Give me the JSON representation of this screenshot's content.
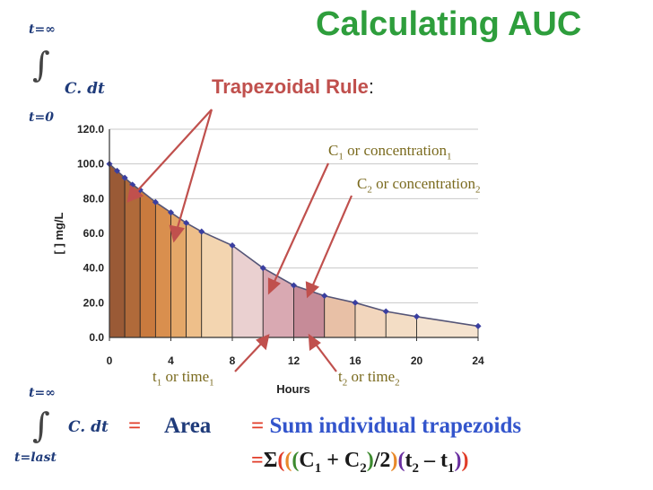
{
  "title": "Calculating AUC",
  "subtitle": "Trapezoidal Rule",
  "subtitle_colon": ":",
  "integral_top": {
    "upper": "t=∞",
    "lower": "t=0",
    "sign": "∫",
    "expression": "C. dt"
  },
  "integral_bottom": {
    "upper": "t=∞",
    "lower": "t=last",
    "sign": "∫",
    "expression": "C. dt"
  },
  "annotations": {
    "c1": {
      "main": "C",
      "sub1": "1",
      "rest": " or concentration",
      "sub2": "1"
    },
    "c2": {
      "main": "C",
      "sub1": "2",
      "rest": " or concentration",
      "sub2": "2"
    },
    "t1": {
      "main": "t",
      "sub1": "1",
      "rest": " or time",
      "sub2": "1"
    },
    "t2": {
      "main": "t",
      "sub1": "2",
      "rest": " or time",
      "sub2": "2"
    }
  },
  "equation": {
    "equals1": "=",
    "area": "Area",
    "equals2": "=",
    "sum_text": "Sum individual trapezoids"
  },
  "formula": {
    "eq": "=",
    "sigma": "Σ",
    "p1": "(",
    "p2": "(",
    "p3": "(",
    "c1": "C",
    "c1sub": "1",
    "plus": " + ",
    "c2": "C",
    "c2sub": "2",
    "close1": ")",
    "div": "/2",
    "close2": ")",
    "p4": "(",
    "t2": "t",
    "t2sub": "2",
    "minus": " – ",
    "t1": "t",
    "t1sub": "1",
    "close3": ")",
    "close4": ")"
  },
  "colors": {
    "title": "#2e9e3c",
    "subtitle": "#c0504d",
    "integral": "#1f3b7a",
    "annotation": "#7a6a1e",
    "equals": "#e03c28",
    "area": "#1f3b7a",
    "sum": "#3355cc",
    "formula_red": "#e03c28",
    "formula_orange": "#e8892a",
    "formula_green": "#3c8a2e",
    "formula_purple": "#6a2fa0",
    "formula_black": "#1a1a1a"
  },
  "chart_data": {
    "type": "area",
    "xlabel": "Hours",
    "ylabel": "[ ] mg/L",
    "xlim": [
      0,
      24
    ],
    "ylim": [
      0,
      120
    ],
    "x_ticks": [
      "0",
      "4",
      "8",
      "12",
      "16",
      "20",
      "24"
    ],
    "y_ticks": [
      "0.0",
      "20.0",
      "40.0",
      "60.0",
      "80.0",
      "100.0",
      "120.0"
    ],
    "grid": true,
    "series": [
      {
        "x": [
          0,
          0.5,
          1,
          1.5,
          2,
          3,
          4,
          5,
          6,
          8,
          10,
          12,
          14,
          16,
          18,
          20,
          24
        ],
        "values": [
          100,
          96,
          92,
          88,
          85,
          78,
          72,
          66,
          61,
          53,
          40,
          30,
          24,
          20,
          15,
          12,
          6.5
        ]
      }
    ],
    "trapezoid_bounds": [
      0,
      1,
      2,
      3,
      4,
      5,
      6,
      8,
      10,
      12,
      14,
      16,
      18,
      20,
      24
    ],
    "trapezoid_colors": [
      "#9a5a36",
      "#b06a3a",
      "#c97a3e",
      "#d98f4e",
      "#e4a768",
      "#eebf8a",
      "#f3d5b0",
      "#ead0d0",
      "#d9a9b2",
      "#c68b98",
      "#e8c0a6",
      "#f2d6bd",
      "#f3ddc5",
      "#f5e3cf",
      "#f6e8d8"
    ]
  }
}
